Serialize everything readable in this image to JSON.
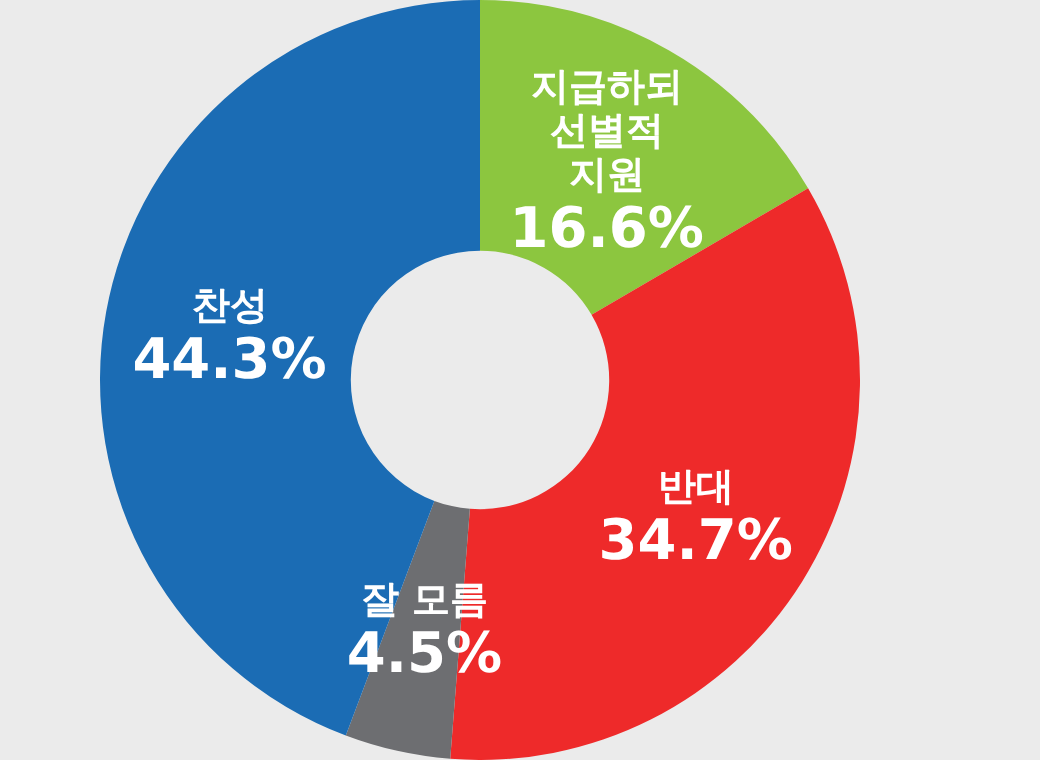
{
  "chart_data": {
    "type": "donut",
    "categories": [
      "지급하되 선별적 지원",
      "반대",
      "잘 모름",
      "찬성"
    ],
    "values": [
      16.6,
      34.7,
      4.5,
      44.3
    ],
    "value_labels": [
      "16.6%",
      "34.7%",
      "4.5%",
      "44.3%"
    ],
    "colors": [
      "#8cc63f",
      "#ee2a2a",
      "#6d6e71",
      "#1b6cb4"
    ],
    "legend": false
  }
}
